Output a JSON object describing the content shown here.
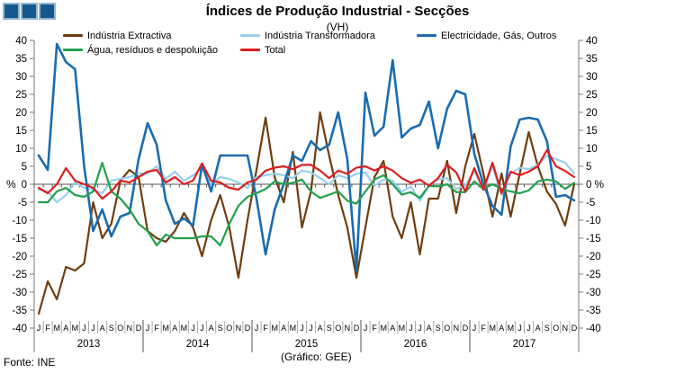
{
  "header": {
    "title": "Índices de Produção Industrial - Secções",
    "subtitle": "(VH)",
    "logo_fill_color": "#15588E",
    "logo_border_color": "#93B6CE"
  },
  "footer": {
    "source": "Fonte: INE",
    "credit": "(Gráfico: GEE)"
  },
  "chart_data": {
    "type": "line",
    "title": "Índices de Produção Industrial - Secções",
    "subtitle": "(VH)",
    "unit_label": "%",
    "ylim": [
      -40,
      40
    ],
    "ytick_step": 5,
    "grid": false,
    "legend_position": "top",
    "years": [
      "2013",
      "2014",
      "2015",
      "2016",
      "2017"
    ],
    "month_letters": [
      "J",
      "F",
      "M",
      "A",
      "M",
      "J",
      "J",
      "A",
      "S",
      "O",
      "N",
      "D"
    ],
    "axis_color": "#7a7a7a",
    "zero_line_color": "#555555",
    "month_separator_color": "#aaaaaa",
    "year_separator_color": "#555555",
    "series": [
      {
        "name": "Indústria Extractiva",
        "color": "#6F3D0F",
        "values": [
          -36,
          -27,
          -32,
          -23,
          -24,
          -22,
          -5,
          -15,
          -11,
          1,
          4,
          2,
          -13,
          -15,
          -16,
          -13,
          -8,
          -12,
          -20,
          -10,
          -3,
          -12,
          -26,
          -10,
          4,
          18.5,
          2,
          -5,
          9,
          -12,
          -2,
          20,
          8,
          -3,
          -12,
          -26,
          -12,
          2,
          6.5,
          -9,
          -15,
          -5,
          -19.5,
          -4,
          -4,
          6.5,
          -8,
          5,
          14,
          3,
          -9,
          3,
          -9,
          3,
          14.5,
          5,
          -2,
          -5.5,
          -11.5,
          0
        ]
      },
      {
        "name": "Indústria Transformadora",
        "color": "#97D0EE",
        "values": [
          -1.5,
          -2,
          -5,
          -3,
          0.5,
          -1,
          -1.5,
          -2.5,
          1,
          1.5,
          2,
          3,
          3,
          5,
          1.5,
          3.5,
          1,
          2.5,
          4.5,
          0,
          2,
          1.5,
          0.5,
          -1,
          2,
          2.5,
          2.9,
          2.5,
          1.7,
          3.8,
          3.3,
          1.7,
          0,
          2.5,
          1.7,
          2.9,
          3.3,
          -0.4,
          1.3,
          1,
          -2.1,
          -0.6,
          -4.6,
          -0.4,
          1.3,
          1.7,
          -1.3,
          -0.4,
          3.8,
          -1.7,
          5,
          -3,
          2.9,
          4.6,
          4.2,
          5.4,
          8,
          7,
          6,
          3
        ]
      },
      {
        "name": "Electricidade, Gás, Outros",
        "color": "#1B6CB0",
        "values": [
          8,
          4,
          39,
          34,
          32,
          5,
          -13,
          -7,
          -14.5,
          -9,
          -8,
          7,
          17,
          11,
          -4.5,
          -11,
          -9.5,
          -11.5,
          5.5,
          -2,
          8,
          8,
          8,
          8,
          -4,
          -19.5,
          -7,
          0,
          8,
          6.5,
          12,
          9.5,
          11,
          20,
          7,
          -24,
          25.5,
          13.5,
          16,
          34.5,
          13,
          15.5,
          16.5,
          23,
          10,
          21,
          26,
          25,
          8.5,
          0,
          -6,
          -8.5,
          10.5,
          18,
          18.5,
          18,
          12,
          -3.5,
          -3,
          -4.5
        ]
      },
      {
        "name": "Água, resíduos e despoluição",
        "color": "#21A14D",
        "values": [
          -5,
          -5,
          -2,
          -1,
          -3,
          -3.5,
          -2,
          6,
          -2,
          -4,
          -7,
          -11,
          -13,
          -17,
          -14,
          -15,
          -15,
          -15,
          -14.5,
          -14.5,
          -17,
          -11,
          -6,
          -3.5,
          -2.5,
          -1.3,
          0.8,
          0,
          0.4,
          1.3,
          -2,
          -3.8,
          -2.9,
          -2,
          -4.6,
          -5.4,
          -2,
          1.3,
          2.5,
          0,
          -2.9,
          -2.2,
          -3.8,
          -0.4,
          -0.6,
          0,
          -2.2,
          -2.2,
          0.8,
          -1.3,
          0,
          -1.3,
          -2,
          -2.5,
          -1.7,
          0.8,
          1.3,
          0.8,
          -1.3,
          0.4
        ]
      },
      {
        "name": "Total",
        "color": "#DD1E1E",
        "values": [
          -1,
          -2.5,
          0,
          4.5,
          1,
          0,
          -1,
          -4,
          -2,
          1,
          0.5,
          2,
          3.5,
          4,
          0.5,
          2,
          0,
          1,
          5.8,
          1,
          0.5,
          -1,
          -1.5,
          0.5,
          1.3,
          3.8,
          4.6,
          5,
          4.2,
          5.4,
          5.4,
          3.8,
          1.7,
          3.8,
          2.9,
          4.6,
          5,
          3.8,
          5,
          3.8,
          1.7,
          0.4,
          1.3,
          -0.4,
          1.7,
          5.4,
          3.3,
          -2,
          4.5,
          -1.5,
          6,
          -2.5,
          3.5,
          2.5,
          3.5,
          5,
          9.5,
          5,
          3.7,
          2
        ]
      }
    ]
  }
}
